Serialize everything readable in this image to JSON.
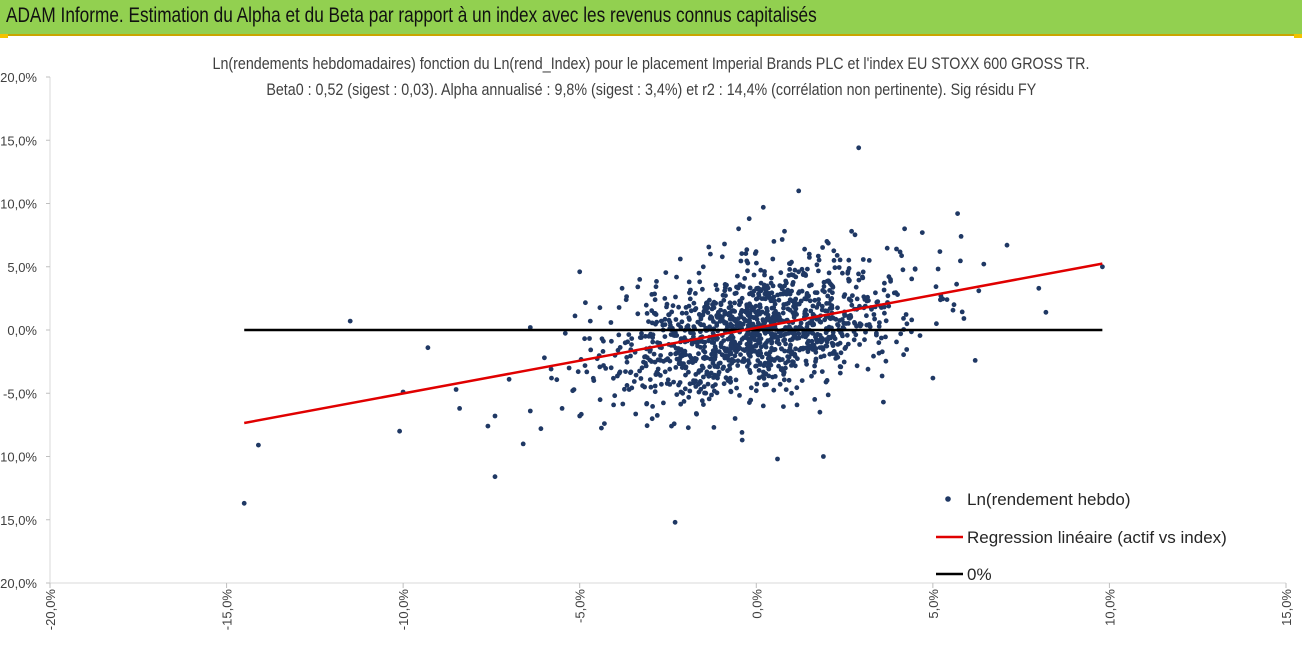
{
  "header": {
    "banner_title": "ADAM Informe. Estimation du Alpha et du Beta par rapport à un index avec les revenus connus capitalisés"
  },
  "colors": {
    "banner_bg": "#92d050",
    "points": "#1f3864",
    "regression": "#e00000",
    "zero_line": "#000000"
  },
  "chart_data": {
    "type": "scatter",
    "title": "Ln(rendements hebdomadaires) fonction du Ln(rend_Index) pour le placement Imperial Brands PLC et l'index EU STOXX 600 GROSS TR.",
    "subtitle": "Beta0 : 0,52 (sigest : 0,03). Alpha annualisé : 9,8% (sigest : 3,4%) et r2 : 14,4% (corrélation non pertinente). Sig résidu FY",
    "xlim": [
      -0.2,
      0.15
    ],
    "ylim": [
      -0.2,
      0.2
    ],
    "x_ticks": [
      "-20,0%",
      "-15,0%",
      "-10,0%",
      "-5,0%",
      "0,0%",
      "5,0%",
      "10,0%",
      "15,0%"
    ],
    "y_ticks": [
      "20,0%",
      "15,0%",
      "10,0%",
      "5,0%",
      "0,0%",
      "-5,0%",
      "-10,0%",
      "-15,0%",
      "-20,0%"
    ],
    "grid": false,
    "legend_position": "bottom-right",
    "series": [
      {
        "name": "Ln(rendement hebdo)",
        "kind": "scatter",
        "points": [
          [
            -0.145,
            -0.137
          ],
          [
            -0.141,
            -0.091
          ],
          [
            -0.115,
            0.007
          ],
          [
            -0.1,
            -0.049
          ],
          [
            -0.101,
            -0.08
          ],
          [
            -0.093,
            -0.014
          ],
          [
            -0.085,
            -0.047
          ],
          [
            -0.084,
            -0.062
          ],
          [
            -0.076,
            -0.076
          ],
          [
            -0.074,
            -0.116
          ],
          [
            -0.074,
            -0.068
          ],
          [
            -0.07,
            -0.039
          ],
          [
            -0.066,
            -0.09
          ],
          [
            -0.064,
            0.002
          ],
          [
            -0.064,
            -0.064
          ],
          [
            -0.061,
            -0.078
          ],
          [
            -0.06,
            -0.022
          ],
          [
            -0.058,
            -0.038
          ],
          [
            -0.055,
            -0.062
          ],
          [
            -0.053,
            -0.03
          ],
          [
            -0.052,
            -0.048
          ],
          [
            -0.05,
            0.046
          ],
          [
            -0.05,
            -0.068
          ],
          [
            -0.047,
            0.007
          ],
          [
            -0.046,
            -0.04
          ],
          [
            -0.043,
            -0.074
          ],
          [
            -0.04,
            -0.02
          ],
          [
            -0.038,
            0.033
          ],
          [
            -0.036,
            -0.047
          ],
          [
            -0.033,
            0.04
          ],
          [
            -0.031,
            -0.058
          ],
          [
            -0.028,
            -0.01
          ],
          [
            -0.024,
            -0.076
          ],
          [
            -0.023,
            -0.152
          ],
          [
            -0.022,
            0.018
          ],
          [
            -0.02,
            -0.03
          ],
          [
            -0.019,
            0.038
          ],
          [
            -0.017,
            -0.066
          ],
          [
            -0.015,
            0.05
          ],
          [
            -0.014,
            -0.022
          ],
          [
            -0.013,
            0.06
          ],
          [
            -0.012,
            -0.077
          ],
          [
            -0.01,
            0.02
          ],
          [
            -0.009,
            0.068
          ],
          [
            -0.008,
            -0.04
          ],
          [
            -0.006,
            -0.07
          ],
          [
            -0.005,
            0.08
          ],
          [
            -0.004,
            -0.087
          ],
          [
            -0.002,
            0.088
          ],
          [
            0.0,
            -0.048
          ],
          [
            0.002,
            0.097
          ],
          [
            0.002,
            -0.06
          ],
          [
            0.005,
            0.07
          ],
          [
            0.006,
            -0.102
          ],
          [
            0.008,
            0.078
          ],
          [
            0.01,
            -0.05
          ],
          [
            0.012,
            0.11
          ],
          [
            0.013,
            -0.04
          ],
          [
            0.015,
            0.06
          ],
          [
            0.018,
            -0.065
          ],
          [
            0.019,
            -0.1
          ],
          [
            0.02,
            0.07
          ],
          [
            0.022,
            0.055
          ],
          [
            0.024,
            -0.018
          ],
          [
            0.027,
            0.078
          ],
          [
            0.029,
            0.144
          ],
          [
            0.032,
            0.055
          ],
          [
            0.034,
            -0.004
          ],
          [
            0.036,
            -0.057
          ],
          [
            0.038,
            0.04
          ],
          [
            0.04,
            0.028
          ],
          [
            0.042,
            0.08
          ],
          [
            0.044,
            0.008
          ],
          [
            0.045,
            0.048
          ],
          [
            0.047,
            0.077
          ],
          [
            0.05,
            -0.038
          ],
          [
            0.051,
            0.005
          ],
          [
            0.052,
            0.062
          ],
          [
            0.054,
            0.024
          ],
          [
            0.056,
            0.02
          ],
          [
            0.057,
            0.092
          ],
          [
            0.058,
            0.074
          ],
          [
            0.062,
            -0.024
          ],
          [
            0.063,
            0.031
          ],
          [
            0.071,
            0.067
          ],
          [
            0.08,
            0.033
          ],
          [
            0.082,
            0.014
          ],
          [
            0.098,
            0.05
          ]
        ]
      },
      {
        "name": "Regression linéaire (actif vs index)",
        "kind": "line",
        "x": [
          -0.145,
          0.098
        ],
        "y": [
          -0.0735,
          0.0525
        ]
      },
      {
        "name": "0%",
        "kind": "line",
        "x": [
          -0.145,
          0.098
        ],
        "y": [
          0.0,
          0.0
        ]
      }
    ],
    "dense_cloud": {
      "x_mean": 0.0,
      "x_sd": 0.02,
      "beta": 0.52,
      "intercept": 0.0,
      "residual_sd": 0.024,
      "count": 1300
    }
  }
}
